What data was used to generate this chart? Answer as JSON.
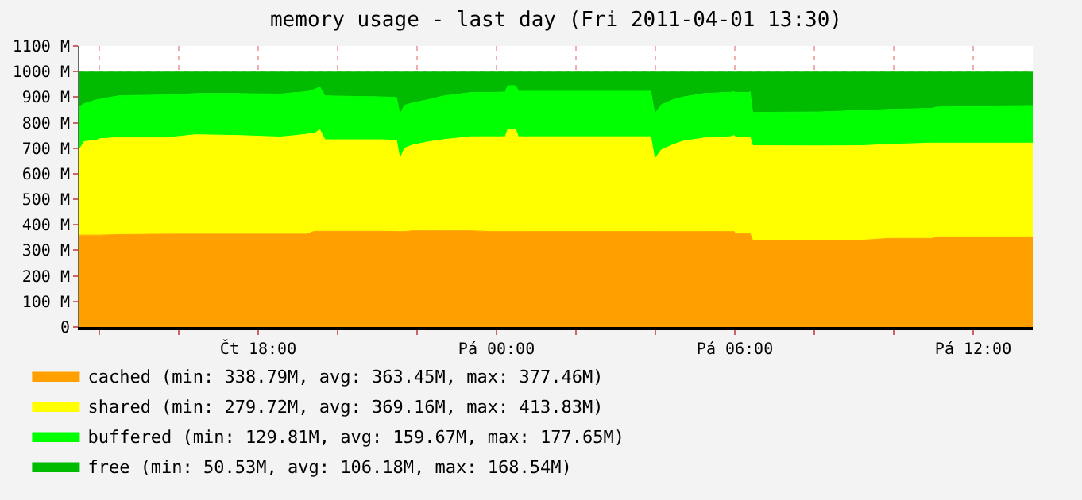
{
  "chart_data": {
    "type": "area",
    "stacked": true,
    "title": "memory usage - last day (Fri 2011-04-01 13:30)",
    "x": [
      "2011-03-31T13:30",
      "2011-03-31T13:37",
      "2011-03-31T13:54",
      "2011-03-31T14:01",
      "2011-03-31T14:29",
      "2011-03-31T15:45",
      "2011-03-31T16:25",
      "2011-03-31T17:29",
      "2011-03-31T18:33",
      "2011-03-31T18:57",
      "2011-03-31T19:13",
      "2011-03-31T19:25",
      "2011-03-31T19:33",
      "2011-03-31T19:41",
      "2011-03-31T21:05",
      "2011-03-31T21:29",
      "2011-03-31T21:34",
      "2011-03-31T21:41",
      "2011-03-31T21:53",
      "2011-03-31T22:17",
      "2011-03-31T22:41",
      "2011-03-31T23:21",
      "2011-03-31T23:51",
      "2011-04-01T00:13",
      "2011-04-01T00:17",
      "2011-04-01T00:29",
      "2011-04-01T00:33",
      "2011-04-01T03:53",
      "2011-04-01T03:59",
      "2011-04-01T04:09",
      "2011-04-01T04:25",
      "2011-04-01T04:41",
      "2011-04-01T05:13",
      "2011-04-01T05:53",
      "2011-04-01T05:59",
      "2011-04-01T06:01",
      "2011-04-01T06:21",
      "2011-04-01T06:23",
      "2011-04-01T06:27",
      "2011-04-01T08:09",
      "2011-04-01T09:13",
      "2011-04-01T09:53",
      "2011-04-01T10:57",
      "2011-04-01T11:05",
      "2011-04-01T12:09",
      "2011-04-01T13:30"
    ],
    "series": [
      {
        "name": "cached (min: 338.79M, avg: 363.45M, max: 377.46M)",
        "color": "#ffa000",
        "values": [
          360,
          360,
          360,
          360,
          362,
          364,
          364,
          364,
          364,
          364,
          364,
          375,
          375,
          375,
          375,
          374,
          374,
          374,
          377,
          377,
          377,
          377,
          374,
          374,
          374,
          374,
          374,
          374,
          374,
          374,
          374,
          374,
          374,
          374,
          374,
          366,
          366,
          366,
          340,
          340,
          340,
          347,
          347,
          353,
          353,
          353
        ]
      },
      {
        "name": "shared (min: 279.72M, avg: 369.16M, max: 413.83M)",
        "color": "#ffff00",
        "values": [
          335,
          366,
          370,
          377,
          380,
          378,
          389,
          386,
          380,
          386,
          391,
          383,
          398,
          358,
          358,
          357,
          283,
          326,
          335,
          348,
          357,
          368,
          371,
          371,
          399,
          399,
          371,
          371,
          283,
          320,
          338,
          353,
          366,
          371,
          376,
          378,
          378,
          378,
          370,
          369,
          370,
          368,
          373,
          367,
          367,
          367
        ]
      },
      {
        "name": "buffered (min: 129.81M, avg: 159.67M, max: 177.65M)",
        "color": "#00ff00",
        "values": [
          168,
          148,
          158,
          155,
          163,
          167,
          161,
          164,
          168,
          168,
          166,
          172,
          167,
          172,
          168,
          168,
          175,
          168,
          165,
          165,
          171,
          173,
          173,
          175,
          172,
          172,
          178,
          178,
          178,
          176,
          176,
          173,
          174,
          174,
          171,
          174,
          174,
          177,
          130,
          133,
          138,
          137,
          136,
          141,
          145,
          147
        ]
      },
      {
        "name": "free (min: 50.53M, avg: 106.18M, max: 168.54M)",
        "color": "#00bb00",
        "values": [
          135,
          124,
          110,
          106,
          93,
          89,
          84,
          84,
          86,
          80,
          77,
          68,
          58,
          93,
          97,
          99,
          166,
          130,
          121,
          108,
          93,
          80,
          80,
          78,
          53,
          53,
          75,
          75,
          163,
          128,
          110,
          98,
          84,
          79,
          77,
          80,
          80,
          77,
          158,
          156,
          150,
          146,
          142,
          137,
          133,
          131
        ]
      }
    ],
    "xlim": [
      "2011-03-31T13:30",
      "2011-04-01T13:30"
    ],
    "xticks": [
      {
        "value": "2011-03-31T14:00",
        "label": null
      },
      {
        "value": "2011-03-31T16:00",
        "label": null
      },
      {
        "value": "2011-03-31T18:00",
        "label": "Čt 18:00"
      },
      {
        "value": "2011-03-31T20:00",
        "label": null
      },
      {
        "value": "2011-03-31T22:00",
        "label": null
      },
      {
        "value": "2011-04-01T00:00",
        "label": "Pá 00:00"
      },
      {
        "value": "2011-04-01T02:00",
        "label": null
      },
      {
        "value": "2011-04-01T04:00",
        "label": null
      },
      {
        "value": "2011-04-01T06:00",
        "label": "Pá 06:00"
      },
      {
        "value": "2011-04-01T08:00",
        "label": null
      },
      {
        "value": "2011-04-01T10:00",
        "label": null
      },
      {
        "value": "2011-04-01T12:00",
        "label": "Pá 12:00"
      }
    ],
    "ylim": [
      0,
      1100
    ],
    "yticks": [
      0,
      {
        "value": 100,
        "label": "100 M"
      },
      {
        "value": 200,
        "label": "200 M"
      },
      {
        "value": 300,
        "label": "300 M"
      },
      {
        "value": 400,
        "label": "400 M"
      },
      {
        "value": 500,
        "label": "500 M"
      },
      {
        "value": 600,
        "label": "600 M"
      },
      {
        "value": 700,
        "label": "700 M"
      },
      {
        "value": 800,
        "label": "800 M"
      },
      {
        "value": 900,
        "label": "900 M"
      },
      {
        "value": 1000,
        "label": "1000 M"
      },
      {
        "value": 1100,
        "label": "1100 M"
      }
    ],
    "grid": true,
    "legend": "bottom left"
  }
}
